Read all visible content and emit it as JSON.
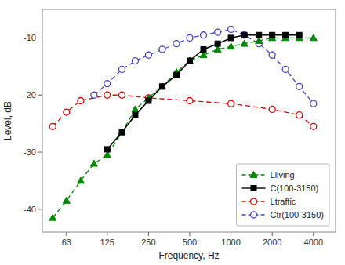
{
  "chart_data": {
    "type": "line",
    "xlabel": "Frequency, Hz",
    "ylabel": "Level, dB",
    "log": "x",
    "grid": false,
    "legend": "lower right",
    "xlim": [
      42,
      5800
    ],
    "xticks": [
      63,
      125,
      250,
      500,
      1000,
      2000,
      4000
    ],
    "ylim": [
      -44,
      -5
    ],
    "yticks": [
      -40,
      -30,
      -20,
      -10
    ],
    "series": [
      {
        "name": "Lliving",
        "color": "#008800",
        "marker": "triangle",
        "line_style": "dashed",
        "x": [
          50,
          63,
          80,
          100,
          125,
          160,
          200,
          250,
          315,
          400,
          500,
          630,
          800,
          1000,
          1250,
          1600,
          2000,
          2500,
          3150,
          4000
        ],
        "values": [
          -41.5,
          -38.5,
          -35.0,
          -32.0,
          -30.5,
          -26.5,
          -22.5,
          -20.5,
          -18.5,
          -16.0,
          -14.0,
          -13.0,
          -12.0,
          -11.5,
          -11.0,
          -10.5,
          -10.0,
          -10.0,
          -10.0,
          -10.0
        ]
      },
      {
        "name": "C(100-3150)",
        "color": "#000000",
        "marker": "square",
        "line_style": "solid",
        "x": [
          125,
          160,
          200,
          250,
          315,
          400,
          500,
          630,
          800,
          1000,
          1250,
          1600,
          2000,
          2500,
          3150
        ],
        "values": [
          -29.5,
          -26.5,
          -23.5,
          -21.0,
          -18.5,
          -16.5,
          -14.0,
          -12.0,
          -11.0,
          -10.0,
          -9.5,
          -9.5,
          -9.5,
          -9.5,
          -9.5
        ]
      },
      {
        "name": "Ltraffic",
        "color": "#dd0000",
        "marker": "open-circle",
        "line_style": "dashed",
        "x": [
          50,
          63,
          80,
          125,
          160,
          250,
          500,
          1000,
          2000,
          3150,
          4000
        ],
        "values": [
          -25.5,
          -23.0,
          -21.0,
          -20.0,
          -20.0,
          -20.5,
          -21.0,
          -21.5,
          -22.5,
          -23.5,
          -25.5
        ]
      },
      {
        "name": "Ctr(100-3150)",
        "color": "#4444cc",
        "marker": "open-circle",
        "line_style": "dashed",
        "x": [
          100,
          125,
          160,
          200,
          250,
          315,
          400,
          500,
          630,
          800,
          1000,
          1250,
          1600,
          2000,
          2500,
          3150,
          4000
        ],
        "values": [
          -20.0,
          -18.0,
          -15.5,
          -14.0,
          -13.0,
          -12.0,
          -11.0,
          -10.0,
          -9.5,
          -9.0,
          -8.5,
          -9.5,
          -11.0,
          -13.0,
          -15.5,
          -18.5,
          -21.5
        ]
      }
    ]
  }
}
